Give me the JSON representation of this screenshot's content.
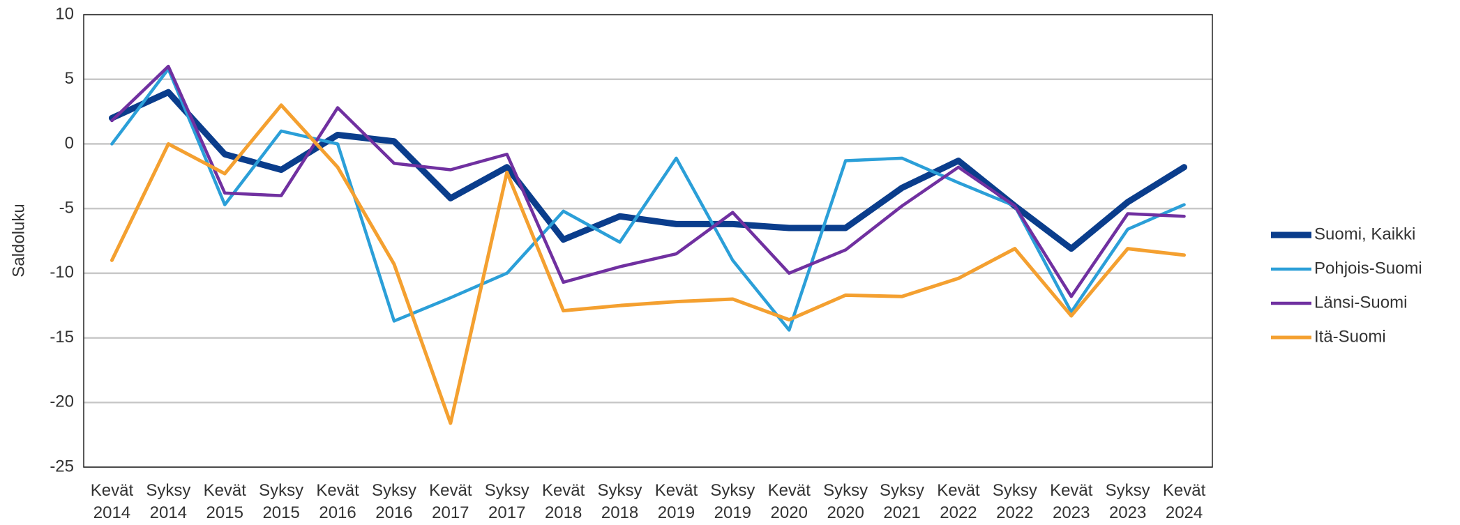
{
  "chart_data": {
    "type": "line",
    "y_label": "Saldoluku",
    "categories": [
      "Kevät 2014",
      "Syksy 2014",
      "Kevät 2015",
      "Syksy 2015",
      "Kevät 2016",
      "Syksy 2016",
      "Kevät 2017",
      "Syksy 2017",
      "Kevät 2018",
      "Syksy 2018",
      "Kevät 2019",
      "Syksy 2019",
      "Kevät 2020",
      "Syksy 2020",
      "Syksy 2021",
      "Kevät 2022",
      "Syksy 2022",
      "Kevät 2023",
      "Syksy 2023",
      "Kevät 2024"
    ],
    "series": [
      {
        "name": "Suomi, Kaikki",
        "color": "#0a3d8c",
        "values": [
          2,
          4,
          -0.8,
          -2,
          0.7,
          0.2,
          -4.2,
          -1.8,
          -7.4,
          -5.6,
          -6.2,
          -6.2,
          -6.5,
          -6.5,
          -3.4,
          -1.3,
          -4.8,
          -8.1,
          -4.5,
          -1.8
        ]
      },
      {
        "name": "Pohjois-Suomi",
        "color": "#2b9fd8",
        "values": [
          0,
          5.8,
          -4.7,
          1,
          0,
          -13.7,
          -11.9,
          -10,
          -5.2,
          -7.6,
          -1.1,
          -9,
          -14.4,
          -1.3,
          -1.1,
          -3,
          -4.8,
          -13,
          -6.6,
          -4.7
        ]
      },
      {
        "name": "Länsi-Suomi",
        "color": "#7030a0",
        "values": [
          1.8,
          6,
          -3.8,
          -4,
          2.8,
          -1.5,
          -2,
          -0.8,
          -10.7,
          -9.5,
          -8.5,
          -5.3,
          -10,
          -8.2,
          -4.8,
          -1.8,
          -4.8,
          -11.8,
          -5.4,
          -5.6
        ]
      },
      {
        "name": "Itä-Suomi",
        "color": "#f4a030",
        "values": [
          -9,
          0,
          -2.3,
          3,
          -1.8,
          -9.3,
          -21.6,
          -2.2,
          -12.9,
          -12.5,
          -12.2,
          -12,
          -13.6,
          -11.7,
          -11.8,
          -10.4,
          -8.1,
          -13.3,
          -8.1,
          -8.6
        ]
      }
    ],
    "ylim": [
      -25,
      10
    ],
    "yticks": [
      -25,
      -20,
      -15,
      -10,
      -5,
      0,
      5,
      10
    ],
    "grid": true,
    "legend": "right"
  }
}
